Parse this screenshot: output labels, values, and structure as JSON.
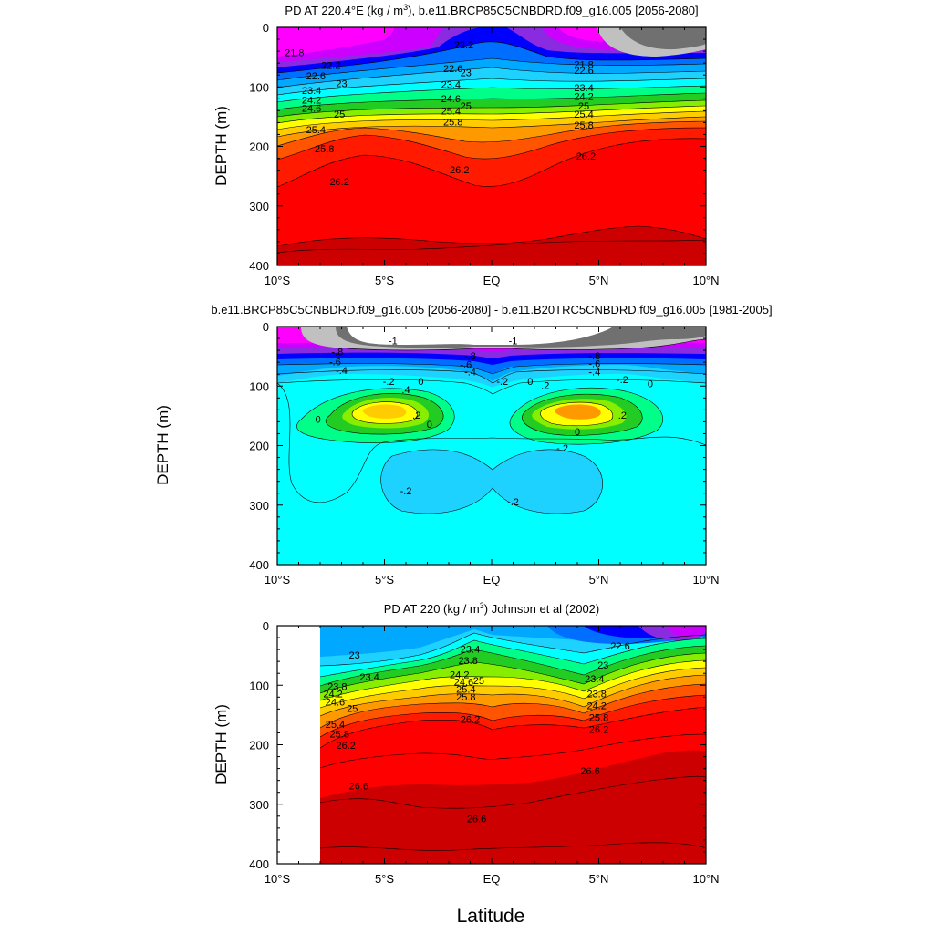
{
  "x_axis_title": "Latitude",
  "colors": {
    "contour_line": "#000000",
    "scale": [
      "#ff00ff",
      "#cc00ff",
      "#8a2be2",
      "#0000ff",
      "#006fff",
      "#00a8ff",
      "#1ed2ff",
      "#00ffff",
      "#00ff88",
      "#22cc22",
      "#88ee00",
      "#ffff00",
      "#ffcc00",
      "#ff9900",
      "#ff5500",
      "#ff1a00",
      "#ff0000",
      "#cc0000"
    ]
  },
  "chart_data": [
    {
      "type": "heatmap",
      "subtype": "filled-contour",
      "title": "PD AT 220.4°E (kg / m",
      "title_sup": "3",
      "title_rest": "), b.e11.BRCP85C5CNBDRD.f09_g16.005 [2056-2080]",
      "ylabel": "DEPTH (m)",
      "xlabel": "Latitude",
      "xlim": [
        -10,
        10
      ],
      "ylim": [
        400,
        0
      ],
      "x_ticks": [
        "10°S",
        "5°S",
        "EQ",
        "5°N",
        "10°N"
      ],
      "y_ticks": [
        "0",
        "100",
        "200",
        "300",
        "400"
      ],
      "contour_levels": [
        21.8,
        22.2,
        22.6,
        23,
        23.4,
        23.8,
        24.2,
        24.6,
        25,
        25.4,
        25.8,
        26.2
      ],
      "contour_labels": [
        {
          "text": "21.8",
          "lat": -9.2,
          "depth": 48
        },
        {
          "text": "22.2",
          "lat": -7.5,
          "depth": 70
        },
        {
          "text": "22.6",
          "lat": -8.2,
          "depth": 87
        },
        {
          "text": "23",
          "lat": -7.0,
          "depth": 100
        },
        {
          "text": "23.4",
          "lat": -8.4,
          "depth": 112
        },
        {
          "text": "24.2",
          "lat": -8.4,
          "depth": 128
        },
        {
          "text": "24.6",
          "lat": -8.4,
          "depth": 142
        },
        {
          "text": "25",
          "lat": -7.1,
          "depth": 152
        },
        {
          "text": "25.4",
          "lat": -8.2,
          "depth": 178
        },
        {
          "text": "25.8",
          "lat": -7.8,
          "depth": 210
        },
        {
          "text": "26.2",
          "lat": -7.1,
          "depth": 265
        },
        {
          "text": "22.2",
          "lat": -1.3,
          "depth": 35
        },
        {
          "text": "22.6",
          "lat": -1.8,
          "depth": 75
        },
        {
          "text": "23",
          "lat": -1.2,
          "depth": 82
        },
        {
          "text": "23.4",
          "lat": -1.9,
          "depth": 102
        },
        {
          "text": "24.6",
          "lat": -1.9,
          "depth": 126
        },
        {
          "text": "25",
          "lat": -1.2,
          "depth": 138
        },
        {
          "text": "25.4",
          "lat": -1.9,
          "depth": 146
        },
        {
          "text": "25.8",
          "lat": -1.8,
          "depth": 165
        },
        {
          "text": "26.2",
          "lat": -1.5,
          "depth": 245
        },
        {
          "text": "21.8",
          "lat": 4.3,
          "depth": 68
        },
        {
          "text": "22.6",
          "lat": 4.3,
          "depth": 78
        },
        {
          "text": "23.4",
          "lat": 4.3,
          "depth": 107
        },
        {
          "text": "24.2",
          "lat": 4.3,
          "depth": 122
        },
        {
          "text": "25",
          "lat": 4.3,
          "depth": 138
        },
        {
          "text": "25.4",
          "lat": 4.3,
          "depth": 152
        },
        {
          "text": "25.8",
          "lat": 4.3,
          "depth": 170
        },
        {
          "text": "26.2",
          "lat": 4.4,
          "depth": 222
        }
      ]
    },
    {
      "type": "heatmap",
      "subtype": "filled-contour",
      "title": "b.e11.BRCP85C5CNBDRD.f09_g16.005 [2056-2080] - b.e11.B20TRC5CNBDRD.f09_g16.005 [1981-2005]",
      "ylabel": "DEPTH (m)",
      "xlabel": "Latitude",
      "xlim": [
        -10,
        10
      ],
      "ylim": [
        400,
        0
      ],
      "x_ticks": [
        "10°S",
        "5°S",
        "EQ",
        "5°N",
        "10°N"
      ],
      "y_ticks": [
        "0",
        "100",
        "200",
        "300",
        "400"
      ],
      "contour_levels": [
        -1,
        -0.8,
        -0.6,
        -0.4,
        -0.2,
        0,
        0.2,
        0.4
      ],
      "contour_labels": [
        {
          "text": "-1",
          "lat": -4.6,
          "depth": 30
        },
        {
          "text": "-.8",
          "lat": -7.2,
          "depth": 48
        },
        {
          "text": "-.6",
          "lat": -7.3,
          "depth": 65
        },
        {
          "text": "-.4",
          "lat": -7.0,
          "depth": 80
        },
        {
          "text": "-.2",
          "lat": -4.8,
          "depth": 98
        },
        {
          "text": "0",
          "lat": -3.3,
          "depth": 98
        },
        {
          "text": "-1",
          "lat": 1.0,
          "depth": 30
        },
        {
          "text": "-.8",
          "lat": -1.0,
          "depth": 55
        },
        {
          "text": "-.6",
          "lat": -1.2,
          "depth": 70
        },
        {
          "text": "-.4",
          "lat": -1.0,
          "depth": 82
        },
        {
          "text": "-.2",
          "lat": 0.5,
          "depth": 98
        },
        {
          "text": "0",
          "lat": 1.8,
          "depth": 98
        },
        {
          "text": ".2",
          "lat": 2.5,
          "depth": 105
        },
        {
          "text": ".4",
          "lat": -4.0,
          "depth": 112
        },
        {
          "text": ".2",
          "lat": -3.5,
          "depth": 155
        },
        {
          "text": "0",
          "lat": -2.9,
          "depth": 170
        },
        {
          "text": "0",
          "lat": -8.1,
          "depth": 162
        },
        {
          "text": "-.8",
          "lat": 4.8,
          "depth": 55
        },
        {
          "text": "-.6",
          "lat": 4.8,
          "depth": 68
        },
        {
          "text": "-.4",
          "lat": 4.8,
          "depth": 82
        },
        {
          "text": "-.2",
          "lat": 6.1,
          "depth": 95
        },
        {
          "text": "0",
          "lat": 7.4,
          "depth": 102
        },
        {
          "text": ".2",
          "lat": 6.1,
          "depth": 155
        },
        {
          "text": "0",
          "lat": 4.0,
          "depth": 182
        },
        {
          "text": "-.2",
          "lat": 3.3,
          "depth": 210
        },
        {
          "text": "-.2",
          "lat": -4.0,
          "depth": 282
        },
        {
          "text": "-.2",
          "lat": 1.0,
          "depth": 300
        }
      ]
    },
    {
      "type": "heatmap",
      "subtype": "filled-contour",
      "title": "PD AT 220 (kg / m",
      "title_sup": "3",
      "title_rest": ") Johnson et al (2002)",
      "ylabel": "DEPTH (m)",
      "xlabel": "Latitude",
      "xlim": [
        -10,
        10
      ],
      "ylim": [
        400,
        0
      ],
      "data_lat_range": [
        -8,
        10
      ],
      "x_ticks": [
        "10°S",
        "5°S",
        "EQ",
        "5°N",
        "10°N"
      ],
      "y_ticks": [
        "0",
        "100",
        "200",
        "300",
        "400"
      ],
      "contour_levels": [
        22.6,
        23,
        23.4,
        23.8,
        24.2,
        24.6,
        25,
        25.4,
        25.8,
        26.2,
        26.6
      ],
      "contour_labels": [
        {
          "text": "23",
          "lat": -6.4,
          "depth": 55
        },
        {
          "text": "23.4",
          "lat": -5.7,
          "depth": 92
        },
        {
          "text": "23.8",
          "lat": -7.2,
          "depth": 108
        },
        {
          "text": "24.2",
          "lat": -7.4,
          "depth": 120
        },
        {
          "text": "24.6",
          "lat": -7.3,
          "depth": 134
        },
        {
          "text": "25",
          "lat": -6.5,
          "depth": 145
        },
        {
          "text": "25.4",
          "lat": -7.3,
          "depth": 172
        },
        {
          "text": "25.8",
          "lat": -7.1,
          "depth": 188
        },
        {
          "text": "26.2",
          "lat": -6.8,
          "depth": 207
        },
        {
          "text": "26.6",
          "lat": -6.2,
          "depth": 275
        },
        {
          "text": "23.4",
          "lat": -1.0,
          "depth": 45
        },
        {
          "text": "23.8",
          "lat": -1.1,
          "depth": 64
        },
        {
          "text": "24.2",
          "lat": -1.5,
          "depth": 88
        },
        {
          "text": "24.6",
          "lat": -1.3,
          "depth": 100
        },
        {
          "text": "25",
          "lat": -0.6,
          "depth": 98
        },
        {
          "text": "25.4",
          "lat": -1.2,
          "depth": 113
        },
        {
          "text": "25.8",
          "lat": -1.2,
          "depth": 126
        },
        {
          "text": "26.2",
          "lat": -1.0,
          "depth": 163
        },
        {
          "text": "26.6",
          "lat": -0.7,
          "depth": 330
        },
        {
          "text": "22.6",
          "lat": 6.0,
          "depth": 40
        },
        {
          "text": "23",
          "lat": 5.2,
          "depth": 72
        },
        {
          "text": "23.4",
          "lat": 4.8,
          "depth": 95
        },
        {
          "text": "23.8",
          "lat": 4.9,
          "depth": 120
        },
        {
          "text": "24.2",
          "lat": 4.9,
          "depth": 140
        },
        {
          "text": "25.8",
          "lat": 5.0,
          "depth": 160
        },
        {
          "text": "26.2",
          "lat": 5.0,
          "depth": 180
        },
        {
          "text": "26.6",
          "lat": 4.6,
          "depth": 250
        }
      ]
    }
  ]
}
